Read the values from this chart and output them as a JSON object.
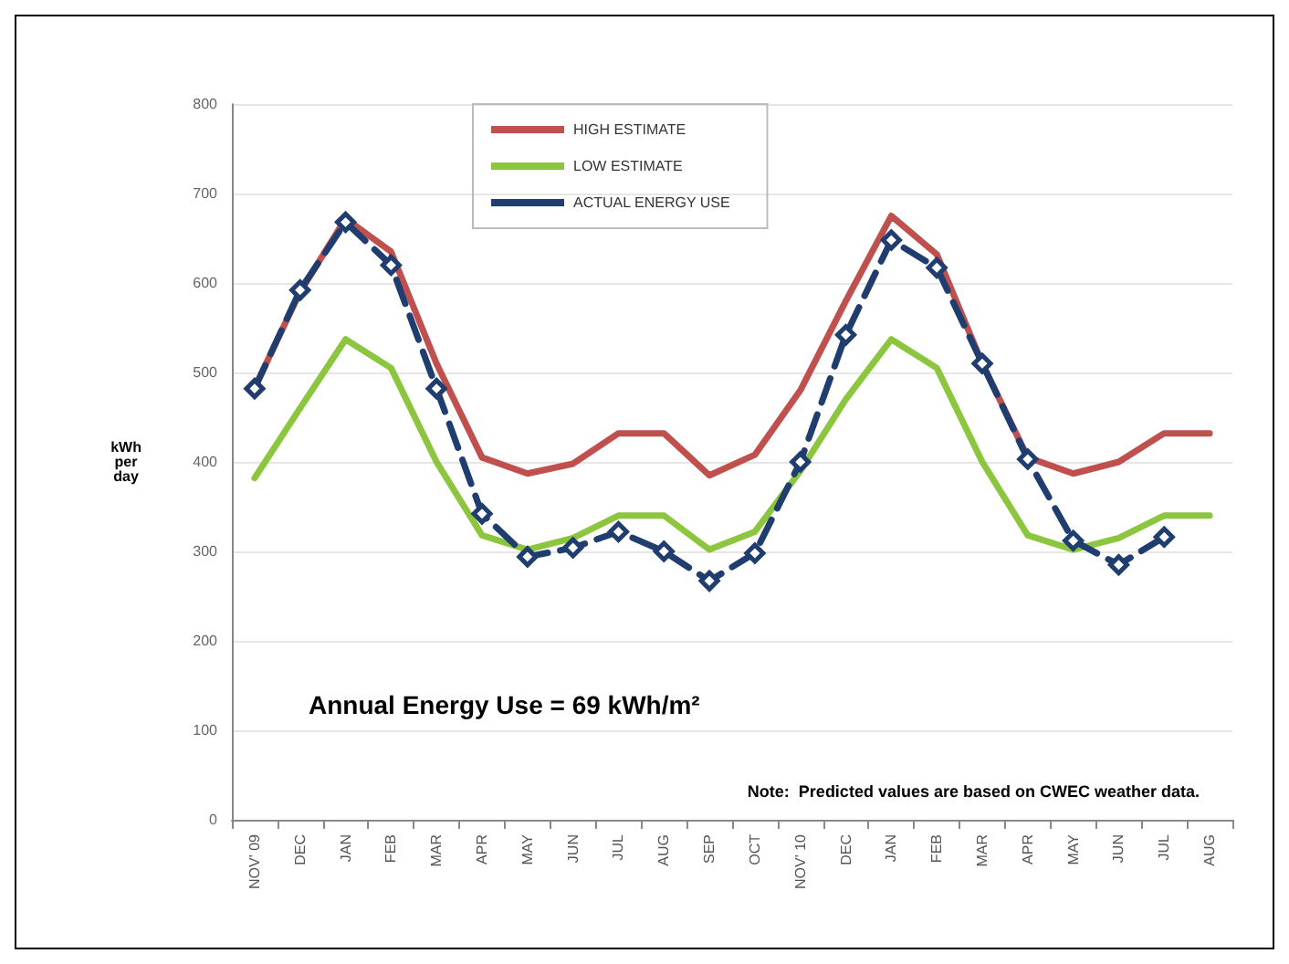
{
  "chart_data": {
    "type": "line",
    "ylabel": "kWh per day",
    "categories": [
      "NOV' 09",
      "DEC",
      "JAN",
      "FEB",
      "MAR",
      "APR",
      "MAY",
      "JUN",
      "JUL",
      "AUG",
      "SEP",
      "OCT",
      "NOV' 10",
      "DEC",
      "JAN",
      "FEB",
      "MAR",
      "APR",
      "MAY",
      "JUN",
      "JUL",
      "AUG"
    ],
    "series": [
      {
        "name": "HIGH ESTIMATE",
        "color": "#c0504d",
        "marker": "none",
        "line_style": "solid",
        "values": [
          483,
          590,
          672,
          635,
          510,
          405,
          387,
          398,
          432,
          432,
          385,
          408,
          480,
          580,
          675,
          632,
          510,
          405,
          387,
          400,
          432,
          432
        ]
      },
      {
        "name": "LOW ESTIMATE",
        "color": "#8cc63e",
        "marker": "none",
        "line_style": "solid",
        "values": [
          382,
          460,
          537,
          505,
          400,
          318,
          302,
          315,
          340,
          340,
          302,
          322,
          390,
          470,
          537,
          505,
          400,
          318,
          302,
          315,
          340,
          340
        ]
      },
      {
        "name": "ACTUAL ENERGY USE",
        "color": "#1f3d6e",
        "marker": "diamond",
        "line_style": "dashed",
        "values": [
          482,
          592,
          668,
          620,
          482,
          342,
          294,
          304,
          322,
          300,
          267,
          298,
          400,
          542,
          648,
          617,
          510,
          403,
          312,
          285,
          316,
          null
        ]
      }
    ],
    "ylim": [
      0,
      800
    ],
    "yticks": [
      0,
      100,
      200,
      300,
      400,
      500,
      600,
      700,
      800
    ],
    "grid": "y",
    "legend": "top",
    "annotations": [
      "Annual Energy Use = 69 kWh/m²",
      "Note:  Predicted values are based on CWEC weather data."
    ]
  }
}
